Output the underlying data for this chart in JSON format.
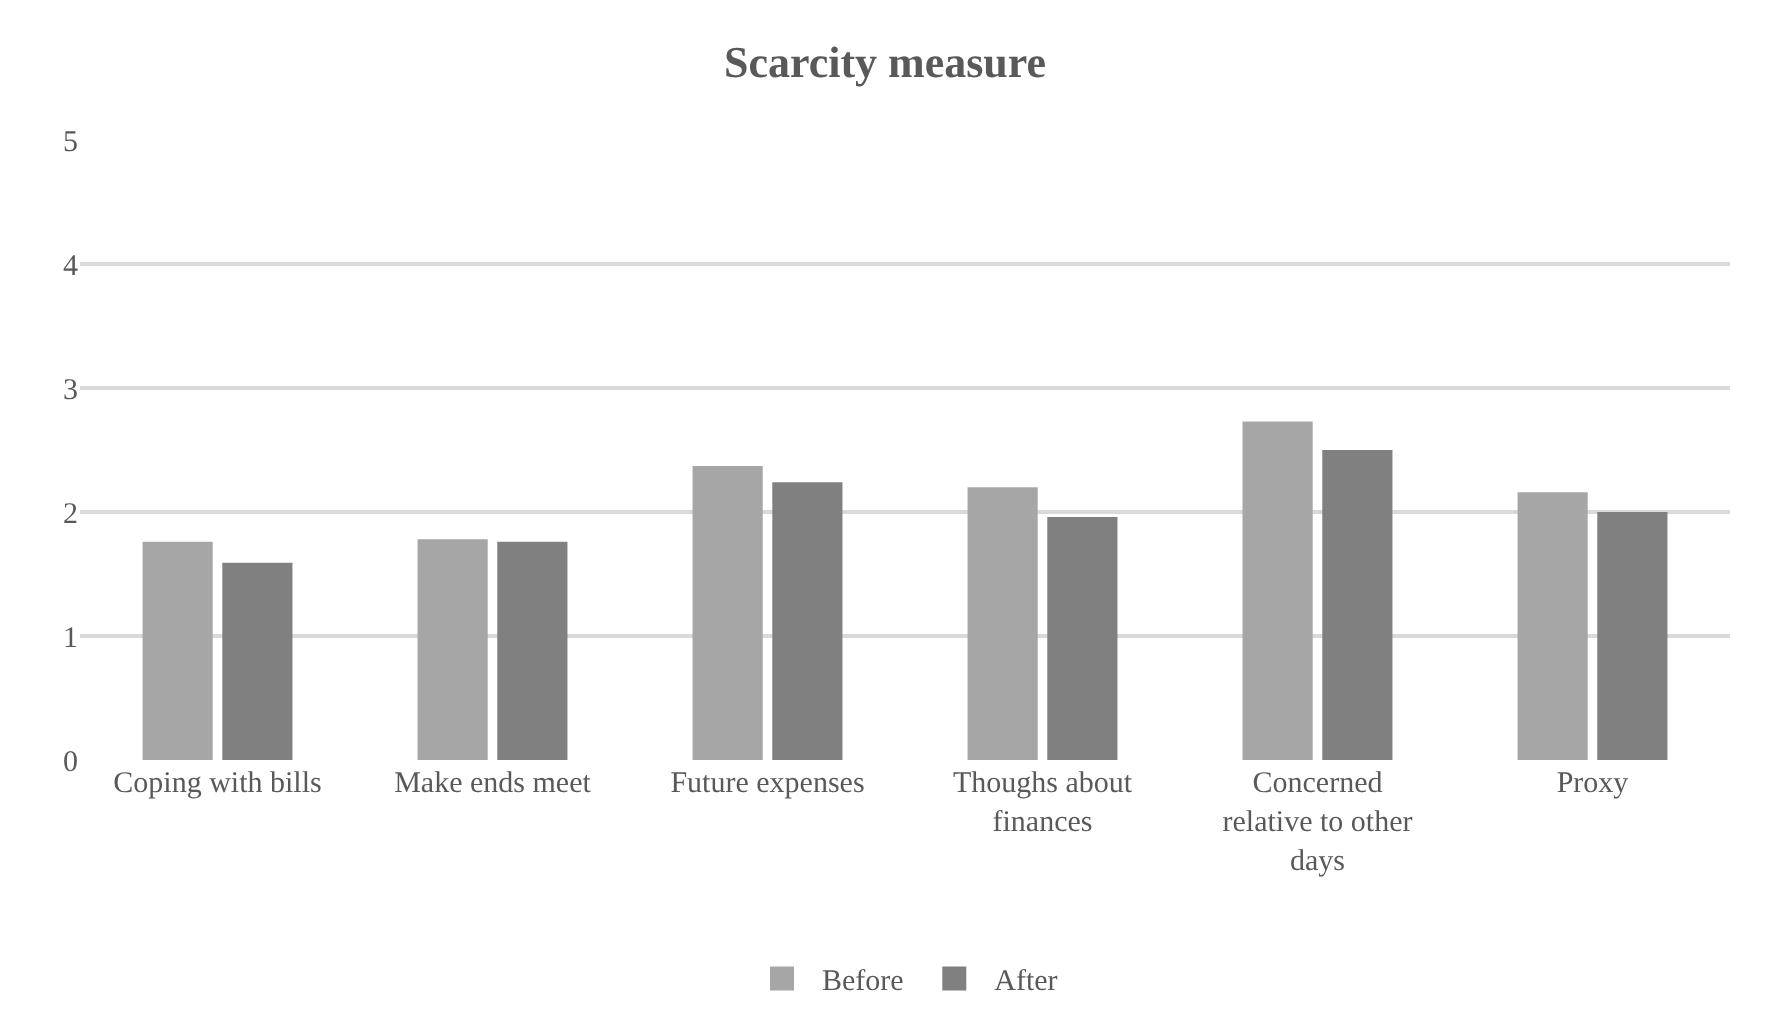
{
  "chart_data": {
    "type": "bar",
    "title": "Scarcity measure",
    "categories": [
      "Coping with bills",
      "Make ends meet",
      "Future expenses",
      "Thoughs about finances",
      "Concerned relative to other days",
      "Proxy"
    ],
    "series": [
      {
        "name": "Before",
        "color": "#a6a6a6",
        "values": [
          1.76,
          1.78,
          2.37,
          2.2,
          2.73,
          2.16
        ]
      },
      {
        "name": "After",
        "color": "#808080",
        "values": [
          1.59,
          1.76,
          2.24,
          1.96,
          2.5,
          2.0
        ]
      }
    ],
    "ylim": [
      0,
      5
    ],
    "yticks": [
      0,
      1,
      2,
      3,
      4,
      5
    ],
    "grid": "y",
    "legend": "bottom"
  }
}
